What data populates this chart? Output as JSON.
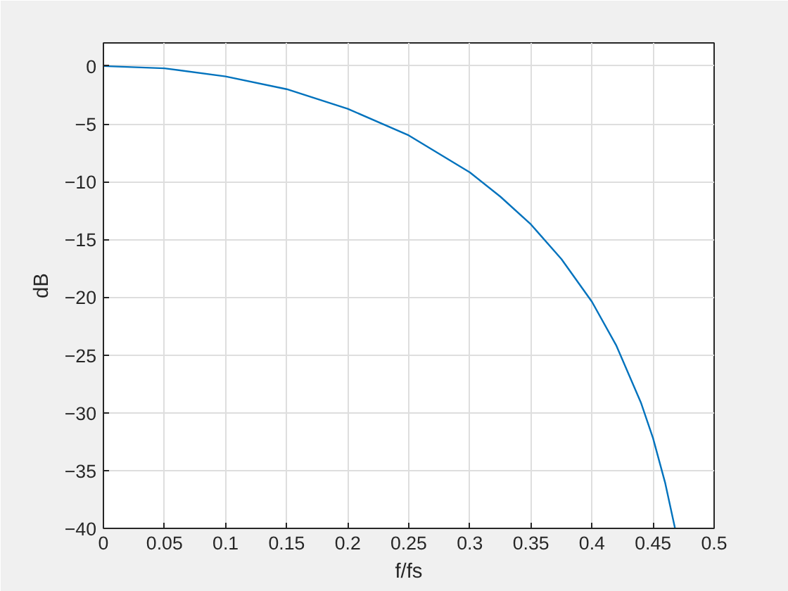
{
  "chart_data": {
    "type": "line",
    "xlabel": "f/fs",
    "ylabel": "dB",
    "x": [
      0,
      0.05,
      0.1,
      0.15,
      0.2,
      0.25,
      0.3,
      0.325,
      0.35,
      0.375,
      0.4,
      0.42,
      0.44,
      0.45,
      0.46,
      0.468
    ],
    "series": [
      {
        "color": "#0072bd",
        "values": [
          0,
          -0.2,
          -0.9,
          -2.0,
          -3.7,
          -6.0,
          -9.2,
          -11.3,
          -13.7,
          -16.7,
          -20.4,
          -24.2,
          -29.1,
          -32.2,
          -36.1,
          -40.0
        ]
      }
    ],
    "xlim": [
      0,
      0.5
    ],
    "ylim": [
      -40,
      2
    ],
    "xticks": [
      0,
      0.05,
      0.1,
      0.15,
      0.2,
      0.25,
      0.3,
      0.35,
      0.4,
      0.45,
      0.5
    ],
    "yticks": [
      -40,
      -35,
      -30,
      -25,
      -20,
      -15,
      -10,
      -5,
      0
    ],
    "grid": true,
    "marker": "none",
    "line_style": "solid"
  }
}
